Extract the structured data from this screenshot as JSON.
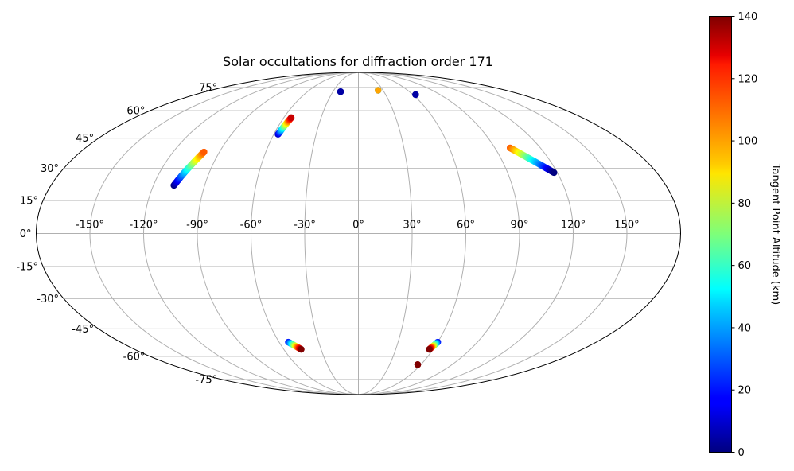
{
  "chart_data": {
    "type": "scatter",
    "projection": "mollweide",
    "title": "Solar occultations for diffraction order 171",
    "lon_ticks": [
      -150,
      -120,
      -90,
      -60,
      -30,
      0,
      30,
      60,
      90,
      120,
      150
    ],
    "lon_tick_labels": [
      "-150°",
      "-120°",
      "-90°",
      "-60°",
      "-30°",
      "0°",
      "30°",
      "60°",
      "90°",
      "120°",
      "150°"
    ],
    "lat_ticks": [
      75,
      60,
      45,
      30,
      15,
      0,
      -15,
      -30,
      -45,
      -60,
      -75
    ],
    "lat_tick_labels": [
      "75°",
      "60°",
      "45°",
      "30°",
      "15°",
      "0°",
      "-15°",
      "-30°",
      "-45°",
      "-60°",
      "-75°"
    ],
    "grid": true,
    "colorbar": {
      "label": "Tangent Point Altitude (km)",
      "min": 0,
      "max": 140,
      "ticks": [
        0,
        20,
        40,
        60,
        80,
        100,
        120,
        140
      ],
      "tick_labels": [
        "0",
        "20",
        "40",
        "60",
        "80",
        "100",
        "120",
        "140"
      ],
      "colormap": "jet"
    },
    "tracks": [
      {
        "lon_start": -108,
        "lat_start": 22,
        "lon_end": -100,
        "lat_end": 38,
        "alt_start": 0,
        "alt_end": 110
      },
      {
        "lon_start": -57,
        "lat_start": 47,
        "lon_end": -54,
        "lat_end": 56,
        "alt_start": 10,
        "alt_end": 130
      },
      {
        "lon_start": -21,
        "lat_start": 72,
        "lon_end": -21,
        "lat_end": 72,
        "alt_start": 5,
        "alt_end": 5
      },
      {
        "lon_start": 24,
        "lat_start": 73,
        "lon_end": 24,
        "lat_end": 73,
        "alt_start": 5,
        "alt_end": 100
      },
      {
        "lon_start": 63,
        "lat_start": 70,
        "lon_end": 63,
        "lat_end": 70,
        "alt_start": 5,
        "alt_end": 5
      },
      {
        "lon_start": 100,
        "lat_start": 40,
        "lon_end": 118,
        "lat_end": 28,
        "alt_start": 110,
        "alt_end": 0
      },
      {
        "lon_start": -53,
        "lat_start": -52,
        "lon_end": -46,
        "lat_end": -56,
        "alt_start": 20,
        "alt_end": 140
      },
      {
        "lon_start": 60,
        "lat_start": -52,
        "lon_end": 57,
        "lat_end": -56,
        "alt_start": 20,
        "alt_end": 140
      },
      {
        "lon_start": 57,
        "lat_start": -65,
        "lon_end": 57,
        "lat_end": -65,
        "alt_start": 140,
        "alt_end": 140
      }
    ]
  }
}
